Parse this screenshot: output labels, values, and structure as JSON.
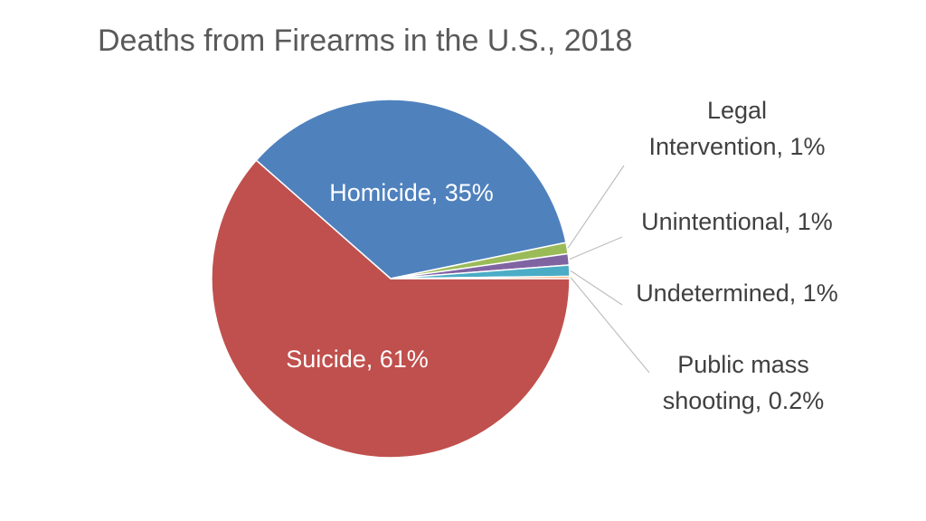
{
  "chart_data": {
    "type": "pie",
    "title": "Deaths from Firearms in the U.S., 2018",
    "slices": [
      {
        "label": "Suicide, 61%",
        "category": "Suicide",
        "value": 61,
        "color": "#c0504d",
        "label_position": "inside"
      },
      {
        "label": "Homicide, 35%",
        "category": "Homicide",
        "value": 35,
        "color": "#4f81bd",
        "label_position": "inside"
      },
      {
        "label": "Legal Intervention, 1%",
        "category": "Legal Intervention",
        "value": 1,
        "color": "#9bbb59",
        "label_position": "outside"
      },
      {
        "label": "Unintentional, 1%",
        "category": "Unintentional",
        "value": 1,
        "color": "#8064a2",
        "label_position": "outside"
      },
      {
        "label": "Undetermined, 1%",
        "category": "Undetermined",
        "value": 1,
        "color": "#4bacc6",
        "label_position": "outside"
      },
      {
        "label": "Public mass shooting, 0.2%",
        "category": "Public mass shooting",
        "value": 0.2,
        "color": "#f79646",
        "label_position": "outside"
      }
    ],
    "legend": "none"
  }
}
